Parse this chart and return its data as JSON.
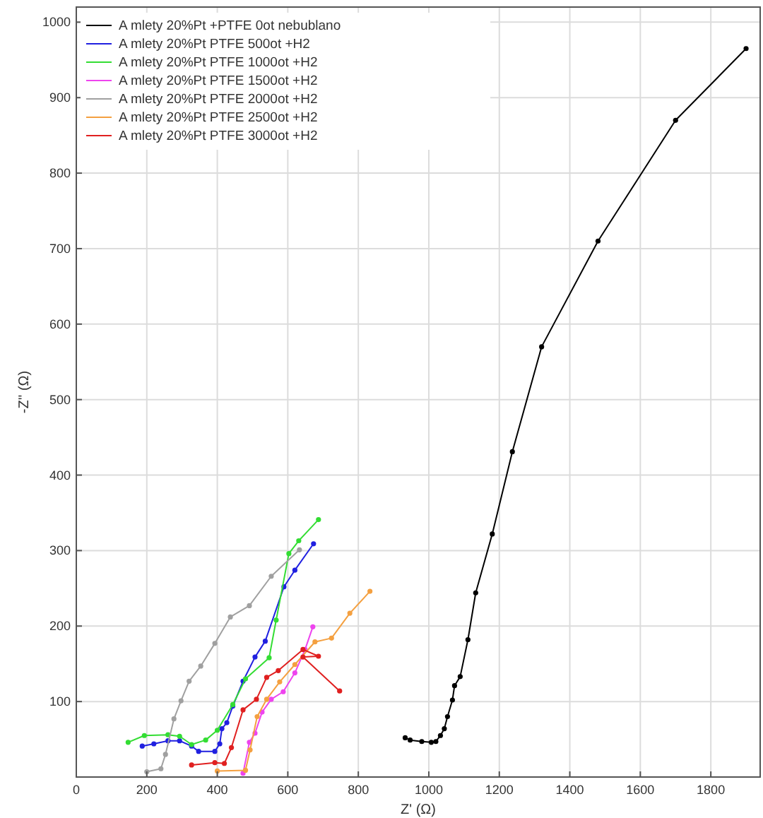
{
  "chart_data": {
    "type": "line",
    "xlabel": "Z' (Ω)",
    "ylabel": "-Z'' (Ω)",
    "xlim": [
      0,
      1940
    ],
    "xticks": [
      0,
      200,
      400,
      600,
      800,
      1000,
      1200,
      1400,
      1600,
      1800
    ],
    "ylim": [
      0,
      1020
    ],
    "yticks": [
      {
        "value": 0,
        "label": null
      },
      100,
      200,
      300,
      400,
      500,
      600,
      700,
      800,
      900,
      1000
    ],
    "grid": true,
    "legend": "top left",
    "marker": "circle",
    "line_style": "solid",
    "series": [
      {
        "name": "A mlety 20%Pt +PTFE 0ot nebublano",
        "color": "#000000",
        "x": [
          933,
          947,
          980,
          1007,
          1020,
          1033,
          1044,
          1053,
          1067,
          1073,
          1089,
          1111,
          1133,
          1180,
          1237,
          1320,
          1480,
          1700,
          1900
        ],
        "values": [
          52,
          49,
          47,
          46,
          47,
          55,
          64,
          80,
          102,
          121,
          133,
          182,
          244,
          322,
          431,
          570,
          710,
          870,
          965
        ]
      },
      {
        "name": "A mlety 20%Pt PTFE 500ot +H2",
        "color": "#2020e0",
        "x": [
          187,
          220,
          260,
          293,
          327,
          347,
          393,
          407,
          413,
          427,
          444,
          473,
          507,
          536,
          589,
          620,
          673
        ],
        "values": [
          41,
          44,
          48,
          48,
          41,
          34,
          34,
          44,
          64,
          72,
          94,
          127,
          159,
          180,
          252,
          274,
          309
        ]
      },
      {
        "name": "A mlety 20%Pt PTFE 1000ot +H2",
        "color": "#33dd33",
        "x": [
          147,
          193,
          260,
          293,
          327,
          367,
          400,
          444,
          480,
          547,
          567,
          603,
          631,
          687
        ],
        "values": [
          46,
          55,
          56,
          54,
          43,
          49,
          62,
          96,
          130,
          158,
          208,
          296,
          313,
          341
        ]
      },
      {
        "name": "A mlety 20%Pt PTFE 1500ot +H2",
        "color": "#ee44ee",
        "x": [
          473,
          491,
          507,
          527,
          553,
          587,
          620,
          649,
          671
        ],
        "values": [
          5,
          46,
          58,
          86,
          103,
          113,
          138,
          169,
          199
        ]
      },
      {
        "name": "A mlety 20%Pt PTFE 2000ot +H2",
        "color": "#a0a0a0",
        "x": [
          200,
          240,
          253,
          277,
          297,
          320,
          353,
          393,
          437,
          491,
          553,
          633
        ],
        "values": [
          7,
          11,
          30,
          77,
          101,
          127,
          147,
          177,
          212,
          227,
          266,
          301
        ]
      },
      {
        "name": "A mlety 20%Pt PTFE 2500ot +H2",
        "color": "#f4a040",
        "x": [
          400,
          480,
          493,
          513,
          540,
          577,
          620,
          677,
          724,
          776,
          833
        ],
        "values": [
          8,
          9,
          36,
          80,
          103,
          126,
          149,
          179,
          184,
          217,
          246
        ]
      },
      {
        "name": "A mlety 20%Pt PTFE 3000ot +H2",
        "color": "#e02020",
        "x": [
          327,
          393,
          420,
          440,
          473,
          511,
          540,
          573,
          643,
          687,
          643,
          747
        ],
        "values": [
          16,
          19,
          18,
          39,
          89,
          103,
          132,
          141,
          169,
          160,
          159,
          114
        ]
      }
    ]
  }
}
